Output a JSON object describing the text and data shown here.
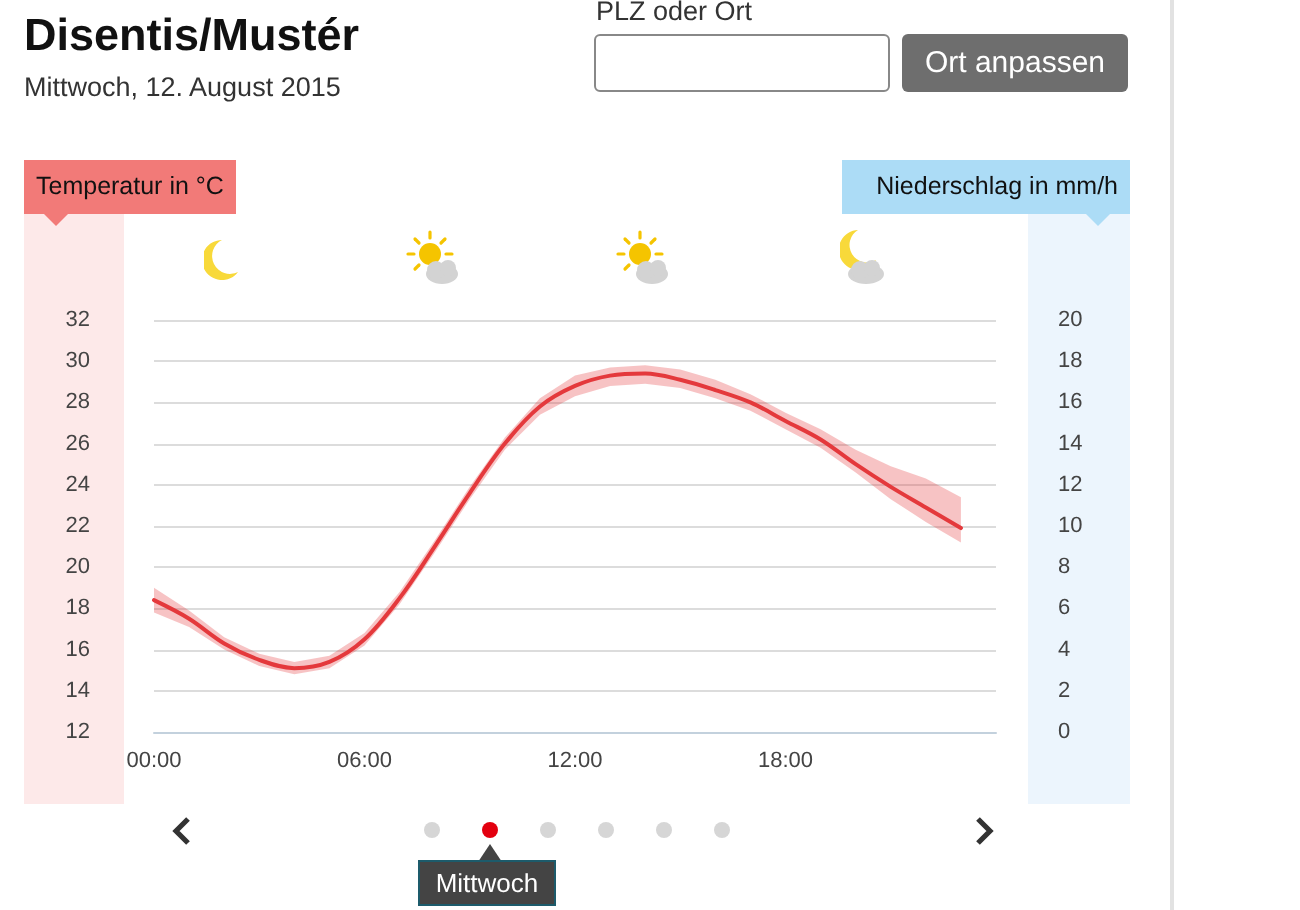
{
  "chart_data": {
    "type": "line",
    "title": "Disentis/Mustér",
    "subtitle": "Mittwoch, 12. August 2015",
    "ylabel": "Temperatur in °C",
    "y2label": "Niederschlag in mm/h",
    "annotations": [
      "PLZ oder Ort",
      "Ort anpassen",
      "Mittwoch"
    ],
    "x": [
      0,
      1,
      2,
      3,
      4,
      5,
      6,
      7,
      8,
      9,
      10,
      11,
      12,
      13,
      14,
      15,
      16,
      17,
      18,
      19,
      20,
      21,
      22,
      23
    ],
    "series": [
      {
        "color": "#e4393c",
        "values": [
          18.4,
          17.5,
          16.3,
          15.5,
          15.1,
          15.4,
          16.5,
          18.5,
          21.0,
          23.6,
          26.0,
          27.8,
          28.8,
          29.3,
          29.4,
          29.1,
          28.6,
          28.0,
          27.1,
          26.2,
          25.0,
          23.9,
          22.9,
          21.9
        ],
        "lower": [
          17.8,
          17.1,
          16.0,
          15.2,
          14.8,
          15.1,
          16.2,
          18.2,
          20.7,
          23.3,
          25.7,
          27.4,
          28.3,
          28.8,
          28.9,
          28.7,
          28.2,
          27.6,
          26.7,
          25.8,
          24.6,
          23.3,
          22.2,
          21.2
        ],
        "upper": [
          19.0,
          17.9,
          16.6,
          15.8,
          15.4,
          15.7,
          16.8,
          18.8,
          21.3,
          23.9,
          26.3,
          28.2,
          29.3,
          29.7,
          29.8,
          29.6,
          29.1,
          28.4,
          27.5,
          26.7,
          25.7,
          24.9,
          24.3,
          23.4
        ]
      }
    ],
    "xlim": [
      0,
      24
    ],
    "xticks": [
      {
        "value": 0,
        "label": "00:00"
      },
      {
        "value": 6,
        "label": "06:00"
      },
      {
        "value": 12,
        "label": "12:00"
      },
      {
        "value": 18,
        "label": "18:00"
      }
    ],
    "ylim": [
      12,
      32
    ],
    "yticks": [
      12,
      14,
      16,
      18,
      20,
      22,
      24,
      26,
      28,
      30,
      32
    ],
    "y2lim": [
      0,
      20
    ],
    "y2ticks": [
      0,
      2,
      4,
      6,
      8,
      10,
      12,
      14,
      16,
      18,
      20
    ],
    "grid": "y",
    "marker": "none",
    "line_style": "solid"
  }
}
